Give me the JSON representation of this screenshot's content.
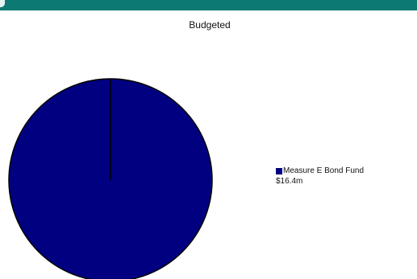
{
  "chart_data": {
    "type": "pie",
    "title": "Budgeted",
    "categories": [
      "Measure E Bond Fund"
    ],
    "values": [
      16.4
    ],
    "value_labels": [
      "$16.4m"
    ],
    "colors": [
      "#000080"
    ],
    "legend_placement": "right"
  },
  "theme": {
    "header_color": "#0c7a72",
    "slice_outline": "#000000"
  }
}
